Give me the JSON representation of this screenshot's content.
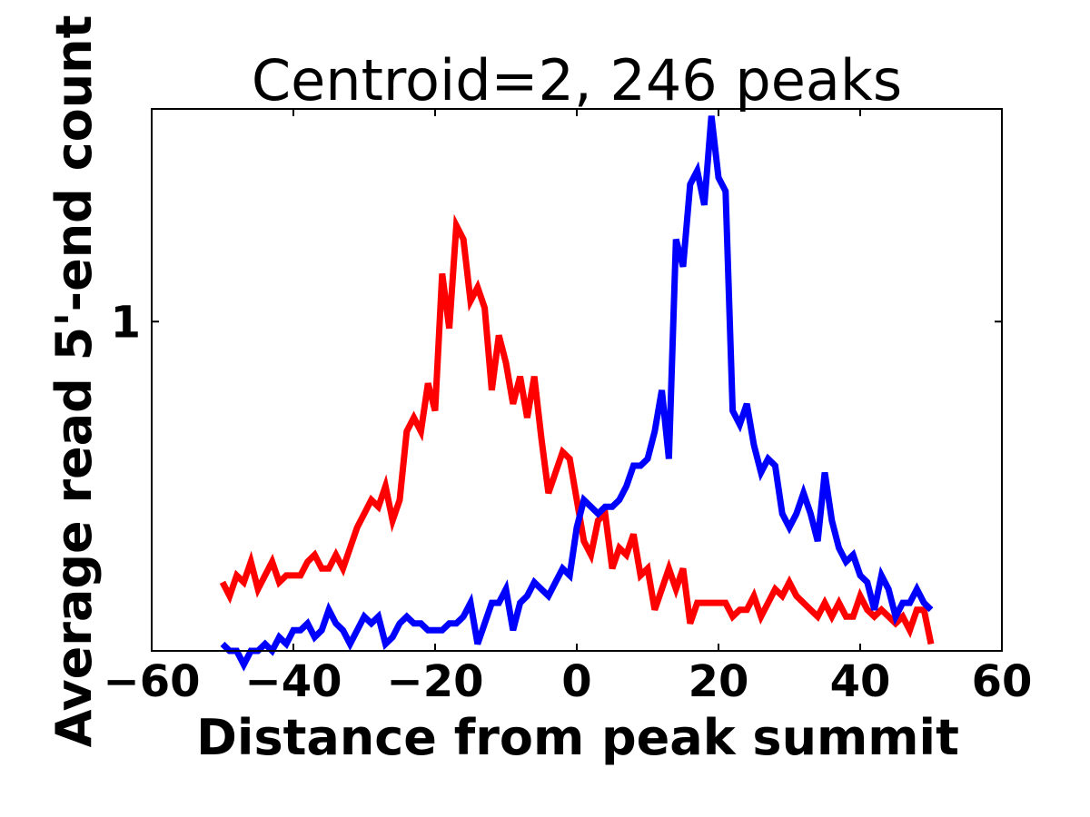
{
  "chart_data": {
    "type": "line",
    "title": "Centroid=2, 246 peaks",
    "xlabel": "Distance from peak summit",
    "ylabel": "Average read 5'-end count",
    "xlim": [
      -60,
      60
    ],
    "ylim": [
      0.52,
      1.31
    ],
    "x_ticks": [
      -60,
      -40,
      -20,
      0,
      20,
      40,
      60
    ],
    "x_tick_labels": [
      "−60",
      "−40",
      "−20",
      "0",
      "20",
      "40",
      "60"
    ],
    "y_ticks": [
      1
    ],
    "y_tick_labels": [
      "1"
    ],
    "grid": false,
    "legend": "none",
    "x": [
      -50,
      -49,
      -48,
      -47,
      -46,
      -45,
      -44,
      -43,
      -42,
      -41,
      -40,
      -39,
      -38,
      -37,
      -36,
      -35,
      -34,
      -33,
      -32,
      -31,
      -30,
      -29,
      -28,
      -27,
      -26,
      -25,
      -24,
      -23,
      -22,
      -21,
      -20,
      -19,
      -18,
      -17,
      -16,
      -15,
      -14,
      -13,
      -12,
      -11,
      -10,
      -9,
      -8,
      -7,
      -6,
      -5,
      -4,
      -3,
      -2,
      -1,
      0,
      1,
      2,
      3,
      4,
      5,
      6,
      7,
      8,
      9,
      10,
      11,
      12,
      13,
      14,
      15,
      16,
      17,
      18,
      19,
      20,
      21,
      22,
      23,
      24,
      25,
      26,
      27,
      28,
      29,
      30,
      31,
      32,
      33,
      34,
      35,
      36,
      37,
      38,
      39,
      40,
      41,
      42,
      43,
      44,
      45,
      46,
      47,
      48,
      49,
      50
    ],
    "series": [
      {
        "color": "#ff0000",
        "values": [
          0.62,
          0.6,
          0.63,
          0.62,
          0.65,
          0.61,
          0.63,
          0.65,
          0.62,
          0.63,
          0.63,
          0.63,
          0.65,
          0.66,
          0.64,
          0.64,
          0.66,
          0.64,
          0.67,
          0.7,
          0.72,
          0.74,
          0.73,
          0.76,
          0.71,
          0.74,
          0.84,
          0.86,
          0.84,
          0.91,
          0.87,
          1.07,
          0.99,
          1.14,
          1.12,
          1.03,
          1.05,
          1.02,
          0.9,
          0.98,
          0.94,
          0.88,
          0.92,
          0.86,
          0.92,
          0.83,
          0.75,
          0.78,
          0.81,
          0.8,
          0.74,
          0.68,
          0.66,
          0.71,
          0.72,
          0.64,
          0.67,
          0.66,
          0.69,
          0.63,
          0.64,
          0.58,
          0.61,
          0.64,
          0.61,
          0.64,
          0.56,
          0.59,
          0.59,
          0.59,
          0.59,
          0.59,
          0.57,
          0.58,
          0.58,
          0.6,
          0.57,
          0.59,
          0.61,
          0.6,
          0.62,
          0.6,
          0.59,
          0.58,
          0.57,
          0.59,
          0.57,
          0.59,
          0.57,
          0.57,
          0.6,
          0.58,
          0.57,
          0.58,
          0.57,
          0.56,
          0.57,
          0.55,
          0.58,
          0.58,
          0.53
        ]
      },
      {
        "color": "#0000ff",
        "values": [
          0.53,
          0.52,
          0.52,
          0.5,
          0.52,
          0.52,
          0.53,
          0.52,
          0.54,
          0.53,
          0.55,
          0.55,
          0.56,
          0.54,
          0.55,
          0.58,
          0.56,
          0.55,
          0.53,
          0.55,
          0.57,
          0.56,
          0.57,
          0.53,
          0.54,
          0.56,
          0.57,
          0.56,
          0.56,
          0.55,
          0.55,
          0.55,
          0.56,
          0.56,
          0.57,
          0.59,
          0.53,
          0.56,
          0.59,
          0.59,
          0.61,
          0.55,
          0.59,
          0.6,
          0.62,
          0.61,
          0.6,
          0.62,
          0.64,
          0.63,
          0.7,
          0.74,
          0.73,
          0.72,
          0.73,
          0.73,
          0.74,
          0.76,
          0.79,
          0.79,
          0.8,
          0.84,
          0.9,
          0.8,
          1.12,
          1.08,
          1.2,
          1.22,
          1.17,
          1.3,
          1.21,
          1.19,
          0.87,
          0.85,
          0.88,
          0.82,
          0.78,
          0.8,
          0.79,
          0.72,
          0.7,
          0.72,
          0.75,
          0.72,
          0.68,
          0.78,
          0.71,
          0.67,
          0.65,
          0.66,
          0.63,
          0.62,
          0.58,
          0.63,
          0.61,
          0.57,
          0.59,
          0.59,
          0.61,
          0.59,
          0.58
        ]
      }
    ]
  }
}
